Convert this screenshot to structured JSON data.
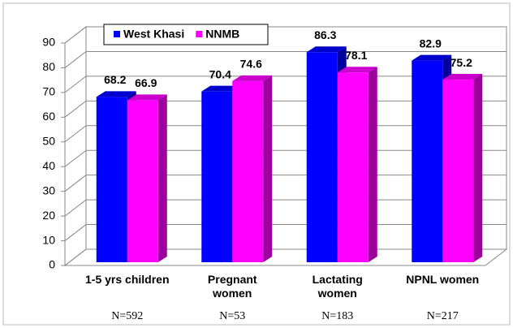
{
  "chart_data": {
    "type": "bar3d",
    "categories": [
      "1-5 yrs children",
      "Pregnant women",
      "Lactating women",
      "NPNL women"
    ],
    "sample_sizes": [
      "N=592",
      "N=53",
      "N=183",
      "N=217"
    ],
    "series": [
      {
        "name": "West Khasi",
        "color": "#0000ff",
        "values": [
          68.2,
          70.4,
          86.3,
          82.9
        ]
      },
      {
        "name": "NNMB",
        "color": "#ff00ff",
        "values": [
          66.9,
          74.6,
          78.1,
          75.2
        ]
      }
    ],
    "ylim": [
      0,
      90
    ],
    "yticks": [
      0,
      10,
      20,
      30,
      40,
      50,
      60,
      70,
      80,
      90
    ],
    "grid": true,
    "legend": "top"
  }
}
